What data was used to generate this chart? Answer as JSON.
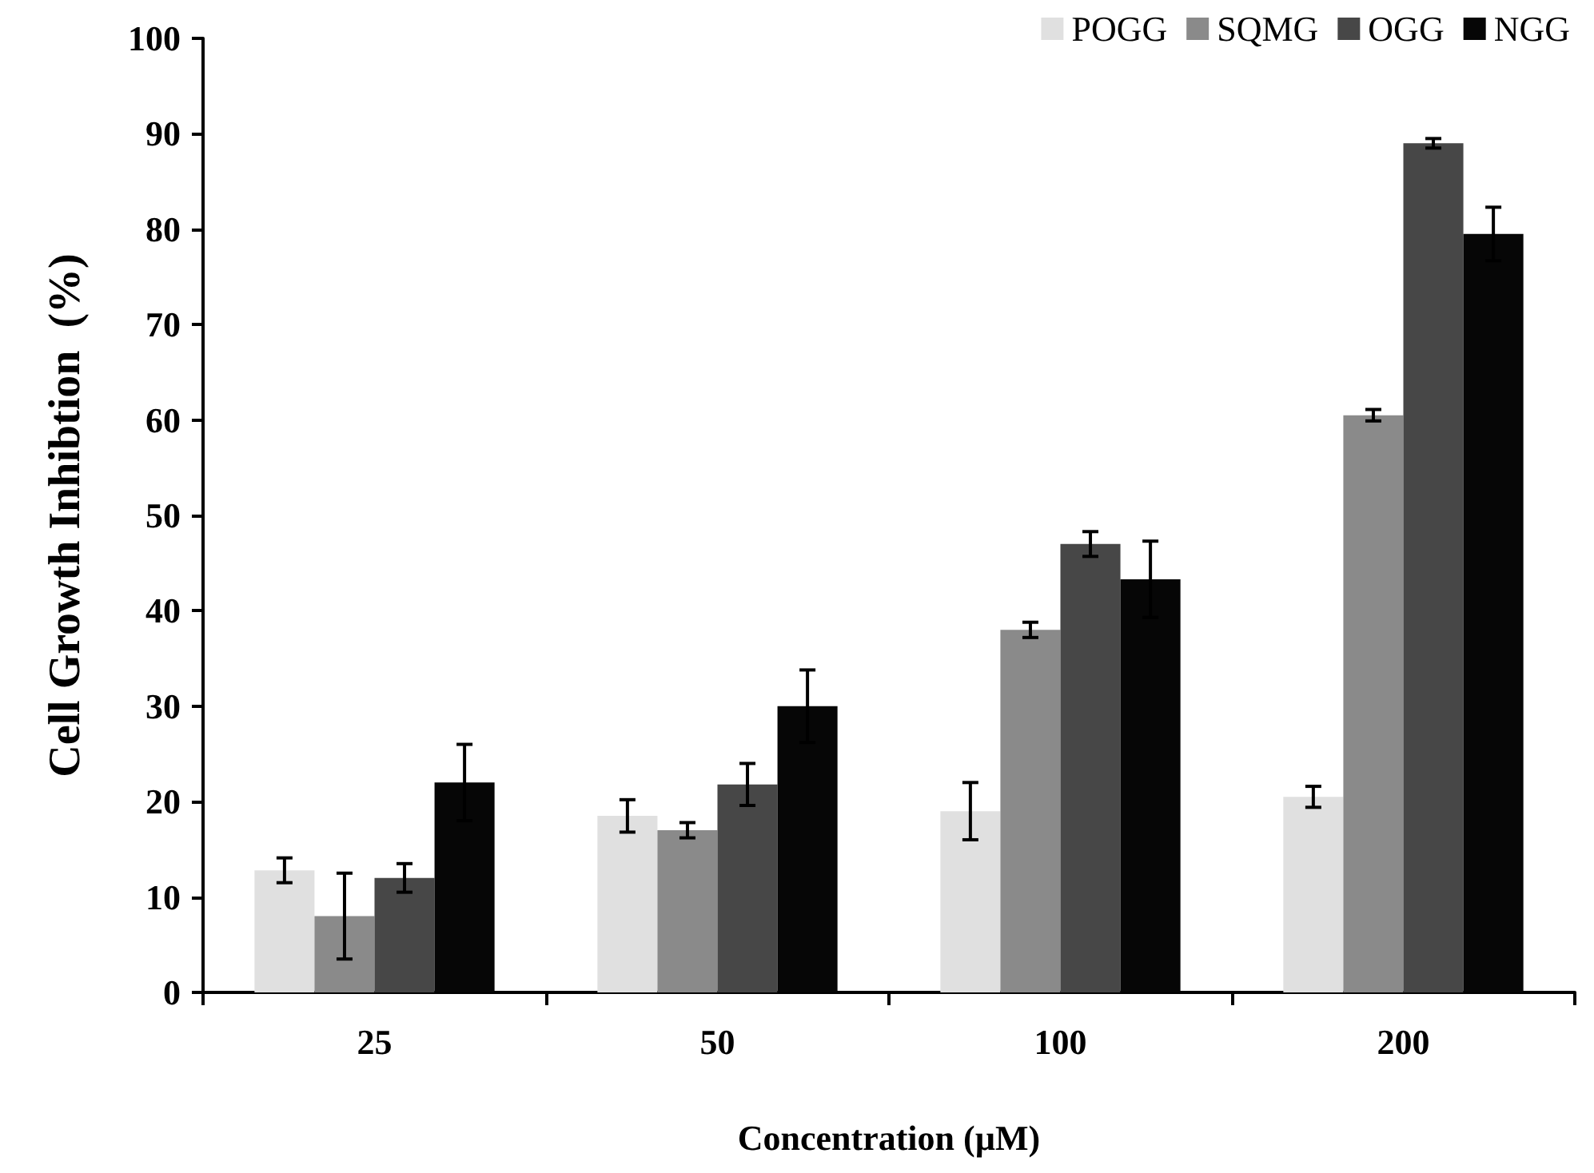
{
  "chart_data": {
    "type": "bar",
    "xlabel": "Concentration (µM)",
    "ylabel": "Cell Growth Inhibtion  (%)",
    "categories": [
      "25",
      "50",
      "100",
      "200"
    ],
    "series": [
      {
        "name": "POGG",
        "color": "#e0e0e0",
        "values": [
          12.8,
          18.5,
          19,
          20.5
        ],
        "errors": [
          1.3,
          1.7,
          3,
          1.1
        ]
      },
      {
        "name": "SQMG",
        "color": "#8a8a8a",
        "values": [
          8,
          17,
          38,
          60.5
        ],
        "errors": [
          4.5,
          0.8,
          0.8,
          0.6
        ]
      },
      {
        "name": "OGG",
        "color": "#474747",
        "values": [
          12,
          21.8,
          47,
          89
        ],
        "errors": [
          1.5,
          2.2,
          1.3,
          0.5
        ]
      },
      {
        "name": "NGG",
        "color": "#060606",
        "values": [
          22,
          30,
          43.3,
          79.5
        ],
        "errors": [
          4,
          3.8,
          4,
          2.8
        ]
      }
    ],
    "ylim": [
      0,
      100
    ],
    "yticks": [
      0,
      10,
      20,
      30,
      40,
      50,
      60,
      70,
      80,
      90,
      100
    ],
    "grid": false,
    "legend": "top right"
  }
}
